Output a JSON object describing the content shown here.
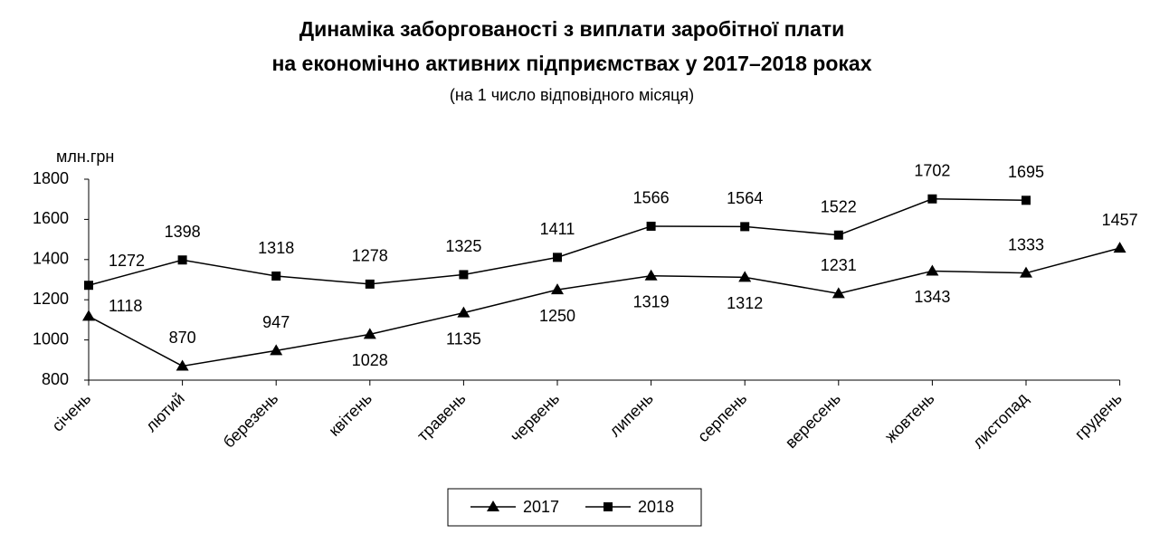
{
  "chart_data": {
    "type": "line",
    "title": [
      "Динаміка заборгованості з виплати заробітної плати",
      "на економічно активних підприємствах у 2017–2018 роках"
    ],
    "subtitle": "(на 1 число відповідного місяця)",
    "y_label": "млн.грн",
    "categories": [
      "січень",
      "лютий",
      "березень",
      "квітень",
      "травень",
      "червень",
      "липень",
      "серпень",
      "вересень",
      "жовтень",
      "листопад",
      "грудень"
    ],
    "series": [
      {
        "name": "2017",
        "color": "#000000",
        "marker": "triangle",
        "values": [
          1118,
          870,
          947,
          1028,
          1135,
          1250,
          1319,
          1312,
          1231,
          1343,
          1333,
          1457
        ]
      },
      {
        "name": "2018",
        "color": "#000000",
        "marker": "square",
        "values": [
          1272,
          1398,
          1318,
          1278,
          1325,
          1411,
          1566,
          1564,
          1522,
          1702,
          1695,
          null
        ]
      }
    ],
    "ylim": [
      800,
      1800
    ],
    "yticks": [
      800,
      1000,
      1200,
      1400,
      1600,
      1800
    ],
    "grid": false,
    "legend": "bottom"
  }
}
